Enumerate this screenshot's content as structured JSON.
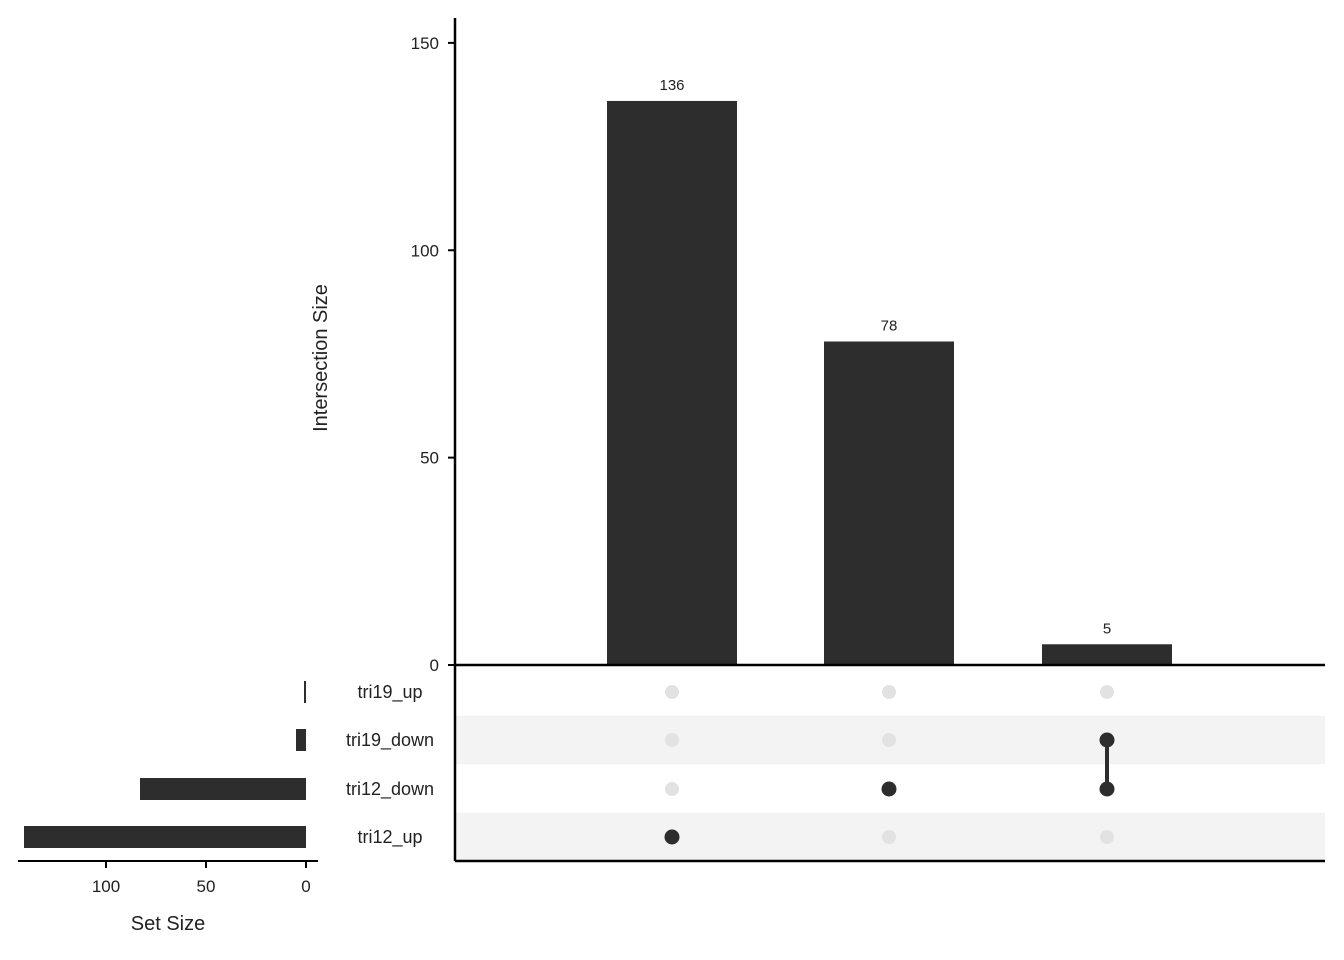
{
  "chart_data": {
    "type": "bar",
    "intersections": {
      "categories": [
        "tri12_up",
        "tri12_down",
        "tri19_down & tri12_down"
      ],
      "values": [
        136,
        78,
        5
      ],
      "ylabel": "Intersection Size",
      "ylim": [
        0,
        156
      ],
      "yticks": [
        0,
        50,
        100,
        150
      ],
      "value_labels": [
        "136",
        "78",
        "5"
      ]
    },
    "sets": {
      "names": [
        "tri19_up",
        "tri19_down",
        "tri12_down",
        "tri12_up"
      ],
      "sizes": [
        1,
        5,
        83,
        141
      ],
      "xlabel": "Set Size",
      "xlim": [
        0,
        144
      ],
      "xticks": [
        100,
        50,
        0
      ]
    },
    "matrix": [
      [
        "tri12_up"
      ],
      [
        "tri12_down"
      ],
      [
        "tri19_down",
        "tri12_down"
      ]
    ],
    "colors": {
      "bar": "#2d2d2d",
      "dot_active": "#2d2d2d",
      "dot_inactive": "#e2e2e2",
      "row_stripe": "#f3f3f3",
      "axis": "#000000"
    },
    "grid": false
  }
}
